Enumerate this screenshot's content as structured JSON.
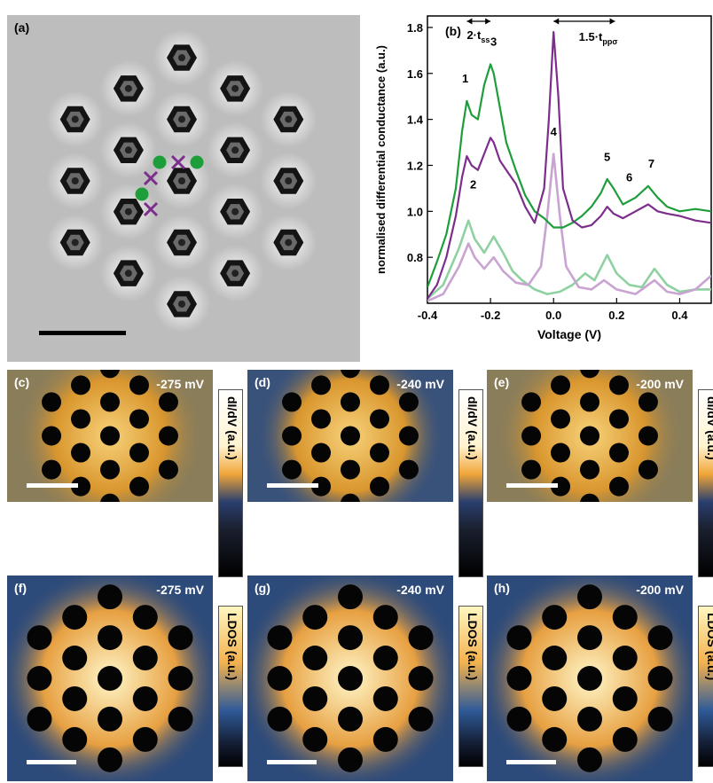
{
  "panel_a": {
    "label": "(a)",
    "legend_colors": {
      "green_dot": "#1e9e3a",
      "purple_cross": "#7d2d8c"
    }
  },
  "panel_b": {
    "label": "(b)",
    "annot_left": "2·t",
    "annot_left_sub": "ss",
    "annot_right": "1.5·t",
    "annot_right_sub": "ppσ",
    "peak_labels": [
      "1",
      "2",
      "3",
      "4",
      "5",
      "6",
      "7"
    ]
  },
  "chart_data": {
    "type": "line",
    "xlabel": "Voltage (V)",
    "ylabel": "normalised differential conductance (a.u.)",
    "xlim": [
      -0.4,
      0.5
    ],
    "ylim": [
      0.6,
      1.85
    ],
    "xticks": [
      "-0.4",
      "-0.2",
      "0.0",
      "0.2",
      "0.4"
    ],
    "yticks": [
      "0.8",
      "1.0",
      "1.2",
      "1.4",
      "1.6",
      "1.8"
    ],
    "series": [
      {
        "color": "#1e9e3a",
        "style": "experiment",
        "x": [
          -0.4,
          -0.37,
          -0.34,
          -0.31,
          -0.29,
          -0.275,
          -0.26,
          -0.24,
          -0.22,
          -0.2,
          -0.19,
          -0.17,
          -0.15,
          -0.12,
          -0.09,
          -0.06,
          -0.03,
          0.0,
          0.03,
          0.06,
          0.09,
          0.12,
          0.15,
          0.17,
          0.19,
          0.22,
          0.26,
          0.3,
          0.33,
          0.36,
          0.4,
          0.45,
          0.5
        ],
        "y": [
          0.67,
          0.78,
          0.9,
          1.1,
          1.35,
          1.48,
          1.42,
          1.4,
          1.55,
          1.64,
          1.6,
          1.45,
          1.3,
          1.18,
          1.07,
          1.0,
          0.97,
          0.93,
          0.93,
          0.95,
          0.98,
          1.02,
          1.08,
          1.14,
          1.1,
          1.03,
          1.06,
          1.11,
          1.06,
          1.02,
          1.0,
          1.01,
          1.0
        ]
      },
      {
        "color": "#7d2d8c",
        "style": "experiment",
        "x": [
          -0.4,
          -0.37,
          -0.34,
          -0.31,
          -0.29,
          -0.275,
          -0.26,
          -0.24,
          -0.22,
          -0.2,
          -0.19,
          -0.17,
          -0.15,
          -0.12,
          -0.09,
          -0.06,
          -0.03,
          -0.015,
          0.0,
          0.015,
          0.03,
          0.06,
          0.09,
          0.12,
          0.15,
          0.17,
          0.19,
          0.22,
          0.26,
          0.3,
          0.33,
          0.36,
          0.4,
          0.45,
          0.5
        ],
        "y": [
          0.62,
          0.68,
          0.8,
          0.98,
          1.15,
          1.24,
          1.2,
          1.18,
          1.25,
          1.32,
          1.3,
          1.22,
          1.18,
          1.12,
          1.02,
          0.95,
          1.1,
          1.4,
          1.78,
          1.5,
          1.1,
          0.96,
          0.93,
          0.94,
          0.98,
          1.02,
          0.99,
          0.97,
          1.0,
          1.03,
          1.0,
          0.99,
          0.98,
          0.96,
          0.95
        ]
      },
      {
        "color": "#8fd1a0",
        "style": "calculation",
        "x": [
          -0.4,
          -0.35,
          -0.3,
          -0.27,
          -0.25,
          -0.22,
          -0.19,
          -0.16,
          -0.13,
          -0.1,
          -0.06,
          -0.02,
          0.02,
          0.06,
          0.1,
          0.13,
          0.17,
          0.2,
          0.24,
          0.28,
          0.32,
          0.36,
          0.4,
          0.45,
          0.5
        ],
        "y": [
          0.62,
          0.68,
          0.84,
          0.96,
          0.88,
          0.82,
          0.89,
          0.82,
          0.74,
          0.7,
          0.66,
          0.64,
          0.65,
          0.68,
          0.73,
          0.7,
          0.81,
          0.73,
          0.68,
          0.67,
          0.75,
          0.68,
          0.65,
          0.66,
          0.66
        ]
      },
      {
        "color": "#c9a3d1",
        "style": "calculation",
        "x": [
          -0.4,
          -0.35,
          -0.3,
          -0.27,
          -0.25,
          -0.22,
          -0.19,
          -0.16,
          -0.12,
          -0.08,
          -0.04,
          -0.02,
          0.0,
          0.02,
          0.04,
          0.08,
          0.12,
          0.16,
          0.2,
          0.26,
          0.32,
          0.36,
          0.4,
          0.45,
          0.5
        ],
        "y": [
          0.61,
          0.64,
          0.76,
          0.86,
          0.8,
          0.75,
          0.8,
          0.74,
          0.69,
          0.68,
          0.76,
          0.98,
          1.25,
          0.98,
          0.76,
          0.67,
          0.66,
          0.7,
          0.66,
          0.64,
          0.7,
          0.65,
          0.64,
          0.66,
          0.72
        ]
      }
    ]
  },
  "maps": [
    {
      "label": "(c)",
      "voltage": "-275 mV",
      "cbar": "dI/dV (a.u.)"
    },
    {
      "label": "(d)",
      "voltage": "-240 mV",
      "cbar": "dI/dV (a.u.)"
    },
    {
      "label": "(e)",
      "voltage": "-200 mV",
      "cbar": "dI/dV (a.u.)"
    },
    {
      "label": "(f)",
      "voltage": "-275 mV",
      "cbar": "LDOS (a.u.)"
    },
    {
      "label": "(g)",
      "voltage": "-240 mV",
      "cbar": "LDOS (a.u.)"
    },
    {
      "label": "(h)",
      "voltage": "-200 mV",
      "cbar": "LDOS (a.u.)"
    }
  ]
}
